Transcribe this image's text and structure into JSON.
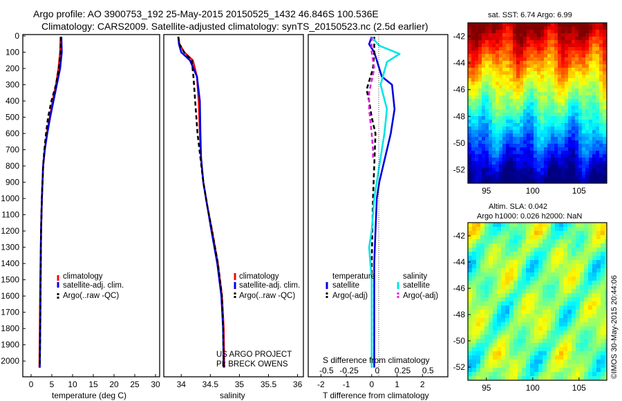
{
  "title": {
    "line1": "Argo profile: AO 3900753_192 25-May-2015 20150525_1432 46.846S 100.536E",
    "line2": "Climatology: CARS2009. Satellite-adjusted climatology: synTS_20150523.nc (2.5d earlier)"
  },
  "colors": {
    "climatology": "#ff0000",
    "satellite": "#0000e0",
    "argo": "#000000",
    "sal_satellite": "#00e5e5",
    "sal_argo": "#e020e0"
  },
  "chart_data": [
    {
      "type": "line",
      "name": "temperature",
      "xlabel": "temperature (deg C)",
      "xlim": [
        -2,
        31
      ],
      "ylim": [
        0,
        2080
      ],
      "xticks": [
        0,
        5,
        10,
        15,
        20,
        25,
        30
      ],
      "yticks": [
        0,
        100,
        200,
        300,
        400,
        500,
        600,
        700,
        800,
        900,
        1000,
        1100,
        1200,
        1300,
        1400,
        1500,
        1600,
        1700,
        1800,
        1900,
        2000
      ],
      "legend": [
        "climatology",
        "satellite-adj. clim.",
        "Argo(..raw -QC)"
      ],
      "legend_position": "lower-center",
      "series": [
        {
          "name": "climatology",
          "color": "#ff0000",
          "style": "solid",
          "x": [
            7.1,
            7.0,
            6.6,
            6.0,
            5.2,
            4.5,
            3.8,
            3.3,
            2.9,
            2.6,
            2.4,
            2.2,
            2.1,
            2.0
          ],
          "y": [
            5,
            100,
            200,
            300,
            400,
            500,
            600,
            700,
            800,
            1000,
            1200,
            1500,
            1800,
            2040
          ]
        },
        {
          "name": "satellite-adj. clim.",
          "color": "#0000e0",
          "style": "solid",
          "x": [
            7.3,
            7.4,
            7.0,
            6.2,
            5.4,
            4.6,
            3.9,
            3.3,
            2.9,
            2.6,
            2.4,
            2.3,
            2.2,
            2.1
          ],
          "y": [
            5,
            100,
            200,
            300,
            400,
            500,
            600,
            700,
            800,
            1000,
            1200,
            1500,
            1800,
            2040
          ]
        },
        {
          "name": "Argo(..raw -QC)",
          "color": "#000000",
          "style": "dash",
          "x": [
            7.2,
            7.1,
            6.7,
            6.0,
            4.9,
            4.1,
            3.6,
            3.2,
            2.9,
            2.6,
            2.4,
            2.3,
            2.2,
            2.1
          ],
          "y": [
            5,
            100,
            200,
            300,
            400,
            500,
            600,
            700,
            800,
            1000,
            1200,
            1500,
            1800,
            2040
          ]
        }
      ]
    },
    {
      "type": "line",
      "name": "salinity",
      "xlabel": "salinity",
      "xlim": [
        33.7,
        36.1
      ],
      "ylim": [
        0,
        2080
      ],
      "xticks": [
        34,
        34.5,
        35,
        35.5,
        36
      ],
      "legend": [
        "climatology",
        "satellite-adj. clim.",
        "Argo(..raw -QC)"
      ],
      "legend_position": "lower-right",
      "annotation": [
        "US ARGO PROJECT",
        "PI: BRECK OWENS"
      ],
      "series": [
        {
          "name": "climatology",
          "color": "#ff0000",
          "style": "solid",
          "x": [
            33.95,
            33.97,
            34.05,
            34.2,
            34.27,
            34.3,
            34.32,
            34.34,
            34.38,
            34.45,
            34.53,
            34.63,
            34.7,
            34.73,
            34.74
          ],
          "y": [
            5,
            50,
            100,
            150,
            250,
            400,
            600,
            750,
            900,
            1050,
            1200,
            1400,
            1600,
            1800,
            2040
          ]
        },
        {
          "name": "satellite-adj. clim.",
          "color": "#0000e0",
          "style": "solid",
          "x": [
            33.95,
            33.96,
            34.0,
            34.15,
            34.27,
            34.32,
            34.33,
            34.34,
            34.38,
            34.45,
            34.52,
            34.62,
            34.69,
            34.72,
            34.73
          ],
          "y": [
            5,
            50,
            100,
            150,
            250,
            400,
            600,
            750,
            900,
            1050,
            1200,
            1400,
            1600,
            1800,
            2040
          ]
        },
        {
          "name": "Argo(..raw -QC)",
          "color": "#000000",
          "style": "dash",
          "x": [
            33.95,
            33.97,
            34.05,
            34.18,
            34.21,
            34.24,
            34.28,
            34.33,
            34.38,
            34.45,
            34.53,
            34.63,
            34.7,
            34.72,
            34.73
          ],
          "y": [
            5,
            50,
            100,
            150,
            250,
            400,
            600,
            750,
            900,
            1050,
            1200,
            1400,
            1600,
            1800,
            2040
          ]
        }
      ]
    },
    {
      "type": "line",
      "name": "difference",
      "xlabel": "T difference from climatology",
      "xlabel_top": "S difference from climatology",
      "xlim": [
        -2.5,
        3
      ],
      "xticks_bottom": [
        -2,
        -1,
        0,
        1,
        2
      ],
      "xticks_top": [
        "-0.5",
        "-0.25",
        "0",
        "0.25",
        "0.5"
      ],
      "legend_groups": [
        {
          "title": "temperature",
          "items": [
            "satellite",
            "Argo(-adj)"
          ]
        },
        {
          "title": "salinity",
          "items": [
            "satellite",
            "Argo(-adj)"
          ]
        }
      ],
      "series": [
        {
          "name": "temperature satellite",
          "color": "#0000e0",
          "style": "solid",
          "x": [
            0,
            -0.1,
            0.1,
            0.3,
            0.4,
            0.8,
            0.9,
            0.75,
            0.6,
            0.45,
            0.3,
            0.2,
            0.15,
            0.1,
            0.1,
            0.1,
            0.1
          ],
          "y": [
            5,
            50,
            100,
            200,
            250,
            300,
            450,
            600,
            700,
            800,
            900,
            1000,
            1200,
            1400,
            1600,
            1800,
            2040
          ]
        },
        {
          "name": "temperature Argo(-adj)",
          "color": "#000000",
          "style": "dash",
          "x": [
            0.1,
            0.1,
            0.05,
            -0.2,
            -0.1,
            0.0,
            0.15,
            0.1,
            0.05,
            0.0,
            0.0,
            0.0
          ],
          "y": [
            5,
            100,
            200,
            330,
            400,
            500,
            600,
            800,
            1000,
            1400,
            1800,
            2040
          ]
        },
        {
          "name": "salinity satellite",
          "color": "#00e5e5",
          "style": "solid",
          "x": [
            0.0,
            0.3,
            1.1,
            0.6,
            0.35,
            0.6,
            0.5,
            0.3,
            0.1,
            0.0,
            -0.1,
            0.0,
            0.0,
            0.0
          ],
          "y": [
            5,
            60,
            110,
            160,
            300,
            450,
            600,
            800,
            1000,
            1200,
            1300,
            1500,
            1800,
            2040
          ]
        },
        {
          "name": "salinity Argo(-adj)",
          "color": "#e020e0",
          "style": "dash",
          "x": [
            0.0,
            0.0,
            0.1,
            -0.1,
            -0.1,
            0.0,
            0.05,
            0.05
          ],
          "y": [
            5,
            100,
            200,
            350,
            450,
            600,
            700,
            750
          ]
        }
      ]
    },
    {
      "type": "heatmap",
      "name": "sst_map",
      "title": "sat. SST: 6.74  Argo: 6.99",
      "xticks": [
        95,
        100,
        105
      ],
      "yticks": [
        -42,
        -44,
        -46,
        -48,
        -50,
        -52
      ],
      "xlim": [
        93,
        108
      ],
      "ylim": [
        -53,
        -41
      ]
    },
    {
      "type": "heatmap",
      "name": "sla_map",
      "title_lines": [
        "Altim. SLA: 0.042",
        "Argo h1000: 0.026  h2000: NaN"
      ],
      "xticks": [
        95,
        100,
        105
      ],
      "yticks": [
        -42,
        -44,
        -46,
        -48,
        -50,
        -52
      ],
      "xlim": [
        93,
        108
      ],
      "ylim": [
        -53,
        -41
      ]
    }
  ],
  "footer": "©IMOS 30-May-2015 20:44:06"
}
